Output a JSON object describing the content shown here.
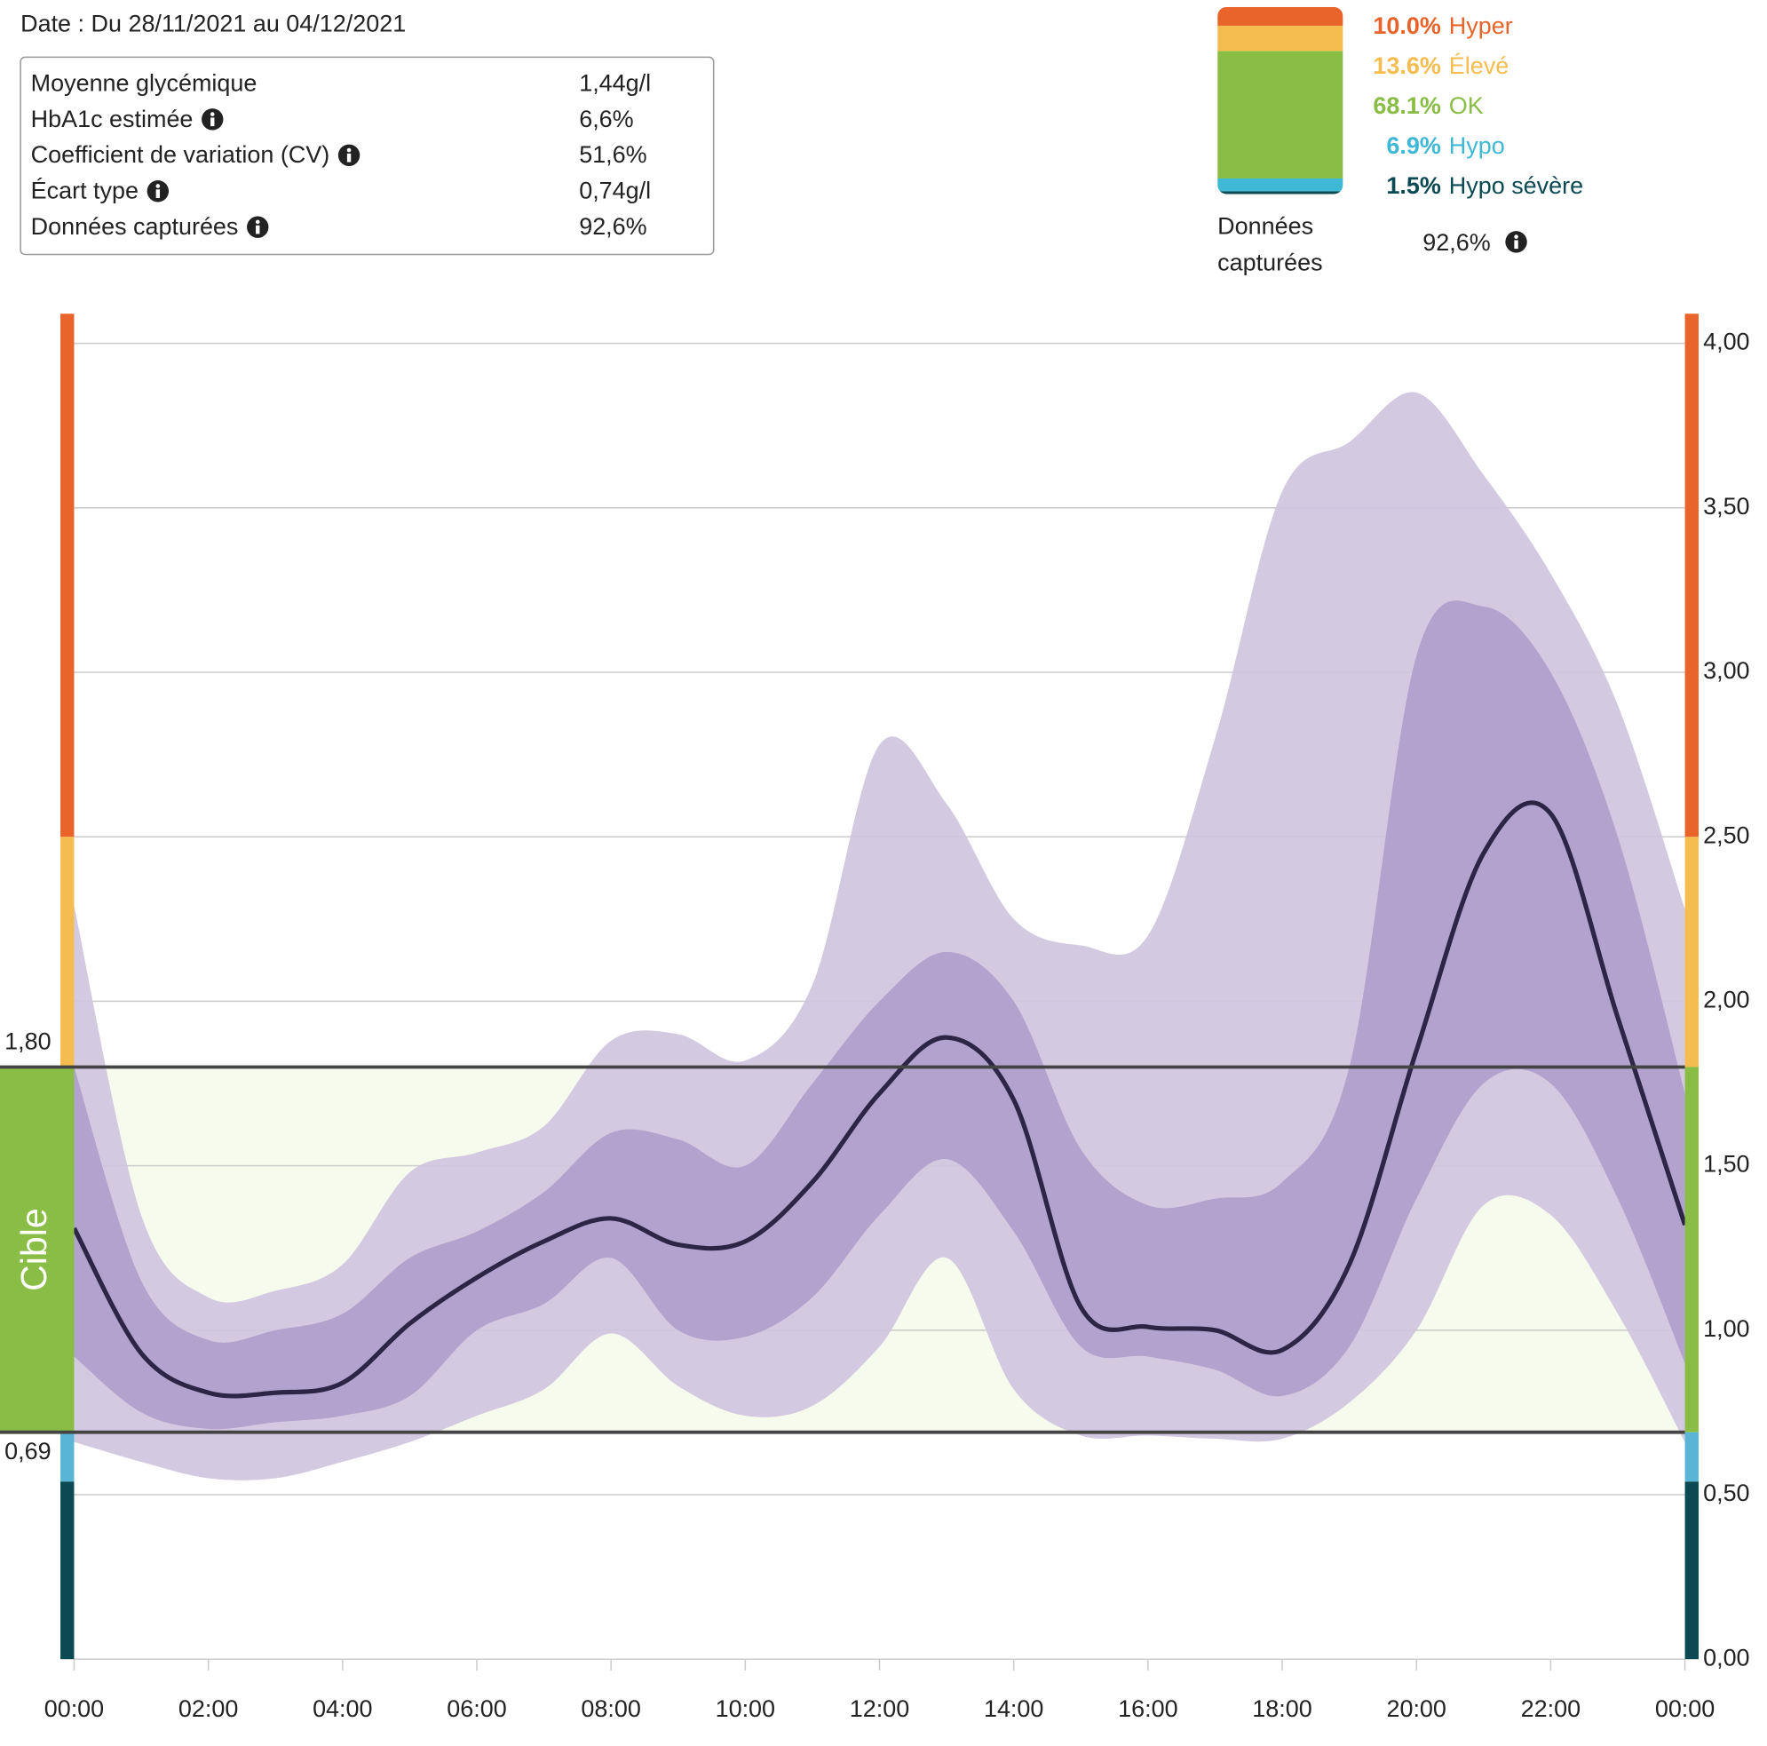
{
  "header": {
    "date": "Date : Du 28/11/2021 au 04/12/2021"
  },
  "stats": [
    {
      "label": "Moyenne glycémique",
      "value": "1,44g/l",
      "info": false
    },
    {
      "label": "HbA1c estimée",
      "value": "6,6%",
      "info": true
    },
    {
      "label": "Coefficient de variation (CV)",
      "value": "51,6%",
      "info": true
    },
    {
      "label": "Écart type",
      "value": "0,74g/l",
      "info": true
    },
    {
      "label": "Données capturées",
      "value": "92,6%",
      "info": true
    }
  ],
  "distribution": {
    "type": "stacked-bar",
    "categories": [
      "Hyper",
      "Élevé",
      "OK",
      "Hypo",
      "Hypo sévère"
    ],
    "values": [
      10.0,
      13.6,
      68.1,
      6.9,
      1.5
    ],
    "value_labels": [
      "10.0%",
      "13.6%",
      "68.1%",
      "6.9%",
      "1.5%"
    ],
    "colors": [
      "#e8642a",
      "#f5bd4f",
      "#8abd45",
      "#3fb8d6",
      "#0b4a52"
    ],
    "caption": "Données capturées",
    "caption_value": "92,6%"
  },
  "chart_data": {
    "type": "line",
    "x": [
      0,
      1,
      2,
      3,
      4,
      5,
      6,
      7,
      8,
      9,
      10,
      11,
      12,
      13,
      14,
      15,
      16,
      17,
      18,
      19,
      20,
      21,
      22,
      23,
      24
    ],
    "xlim": [
      0,
      24
    ],
    "xticks": [
      {
        "value": 0,
        "label": "00:00"
      },
      {
        "value": 2,
        "label": "02:00"
      },
      {
        "value": 4,
        "label": "04:00"
      },
      {
        "value": 6,
        "label": "06:00"
      },
      {
        "value": 8,
        "label": "08:00"
      },
      {
        "value": 10,
        "label": "10:00"
      },
      {
        "value": 12,
        "label": "12:00"
      },
      {
        "value": 14,
        "label": "14:00"
      },
      {
        "value": 16,
        "label": "16:00"
      },
      {
        "value": 18,
        "label": "18:00"
      },
      {
        "value": 20,
        "label": "20:00"
      },
      {
        "value": 22,
        "label": "22:00"
      },
      {
        "value": 24,
        "label": "00:00"
      }
    ],
    "ylim": [
      0,
      4.09
    ],
    "yticks": [
      {
        "value": 0,
        "label": "0,00"
      },
      {
        "value": 0.5,
        "label": "0,50"
      },
      {
        "value": 1,
        "label": "1,00"
      },
      {
        "value": 1.5,
        "label": "1,50"
      },
      {
        "value": 2,
        "label": "2,00"
      },
      {
        "value": 2.5,
        "label": "2,50"
      },
      {
        "value": 3,
        "label": "3,00"
      },
      {
        "value": 3.5,
        "label": "3,50"
      },
      {
        "value": 4,
        "label": "4,00"
      }
    ],
    "grid": true,
    "bands": [
      {
        "color": "#cfc5e0",
        "lower": [
          0.66,
          0.6,
          0.55,
          0.55,
          0.6,
          0.66,
          0.74,
          0.82,
          0.99,
          0.83,
          0.74,
          0.77,
          0.95,
          1.22,
          0.82,
          0.68,
          0.68,
          0.67,
          0.67,
          0.78,
          1.0,
          1.38,
          1.35,
          1.05,
          0.66
        ],
        "upper": [
          2.29,
          1.35,
          1.1,
          1.12,
          1.2,
          1.48,
          1.54,
          1.62,
          1.88,
          1.9,
          1.82,
          2.05,
          2.78,
          2.6,
          2.25,
          2.17,
          2.2,
          2.8,
          3.55,
          3.7,
          3.85,
          3.6,
          3.3,
          2.9,
          2.28
        ]
      },
      {
        "color": "#ae9fcb",
        "lower": [
          0.92,
          0.75,
          0.7,
          0.72,
          0.74,
          0.8,
          1.0,
          1.08,
          1.22,
          1.0,
          0.98,
          1.1,
          1.35,
          1.52,
          1.3,
          0.95,
          0.92,
          0.88,
          0.8,
          0.95,
          1.4,
          1.75,
          1.75,
          1.4,
          0.9
        ],
        "upper": [
          1.8,
          1.15,
          0.97,
          1.0,
          1.05,
          1.22,
          1.3,
          1.42,
          1.6,
          1.58,
          1.5,
          1.75,
          2.0,
          2.15,
          2.0,
          1.55,
          1.38,
          1.4,
          1.45,
          1.8,
          3.05,
          3.2,
          3.0,
          2.5,
          1.72
        ]
      }
    ],
    "series": [
      {
        "color": "#2d2545",
        "values": [
          1.31,
          0.93,
          0.81,
          0.81,
          0.84,
          1.02,
          1.16,
          1.27,
          1.34,
          1.26,
          1.27,
          1.45,
          1.72,
          1.89,
          1.7,
          1.07,
          1.01,
          1.0,
          0.94,
          1.2,
          1.85,
          2.45,
          2.57,
          1.95,
          1.32
        ]
      }
    ],
    "target_lines": [
      {
        "value": 1.8,
        "label": "1,80"
      },
      {
        "value": 0.69,
        "label": "0,69"
      }
    ],
    "target_label": "Cible",
    "target_color": "#8abd45",
    "target_fill": "#f7fbee",
    "zone_thresholds": [
      0.54,
      0.69,
      1.8,
      2.5
    ],
    "zone_colors": [
      "#0b4a52",
      "#5ab4d6",
      "#8abd45",
      "#f5bd4f",
      "#e8642a"
    ]
  }
}
